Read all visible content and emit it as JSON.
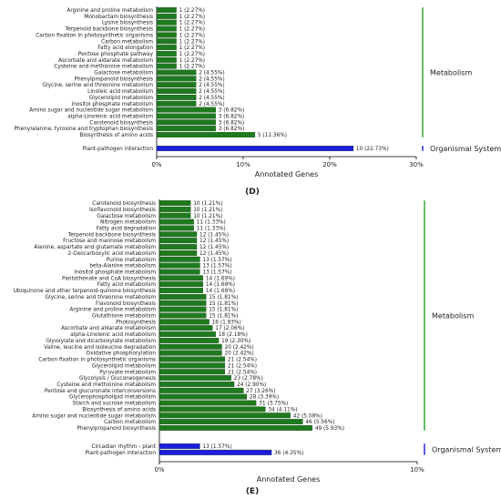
{
  "colors": {
    "metabolism": "#1f7a1f",
    "organismal": "#1d1ddc",
    "bracket": "#2e9e2e",
    "bracket2": "#1d1ddc",
    "axis": "#000000",
    "text": "#222222"
  },
  "chart_data": [
    {
      "type": "bar",
      "orientation": "horizontal",
      "panel_label": "(D)",
      "xlabel": "Annotated Genes",
      "xticks": [
        "0%",
        "10%",
        "20%",
        "30%"
      ],
      "xlim": [
        0,
        30
      ],
      "groups": [
        "Metabolism",
        "Organismal Systems"
      ],
      "bars": [
        {
          "category": "Arginine and proline metabolism",
          "count": 1,
          "pct": 2.27,
          "label": "1 (2.27%)",
          "group": 0
        },
        {
          "category": "Monobactam biosynthesis",
          "count": 1,
          "pct": 2.27,
          "label": "1 (2.27%)",
          "group": 0
        },
        {
          "category": "Lysine biosynthesis",
          "count": 1,
          "pct": 2.27,
          "label": "1 (2.27%)",
          "group": 0
        },
        {
          "category": "Terpenoid backbone biosynthesis",
          "count": 1,
          "pct": 2.27,
          "label": "1 (2.27%)",
          "group": 0
        },
        {
          "category": "Carbon fixation in photosynthetic organisms",
          "count": 1,
          "pct": 2.27,
          "label": "1 (2.27%)",
          "group": 0
        },
        {
          "category": "Carbon metabolism",
          "count": 1,
          "pct": 2.27,
          "label": "1 (2.27%)",
          "group": 0
        },
        {
          "category": "Fatty acid elongation",
          "count": 1,
          "pct": 2.27,
          "label": "1 (2.27%)",
          "group": 0
        },
        {
          "category": "Pentose phosphate pathway",
          "count": 1,
          "pct": 2.27,
          "label": "1 (2.27%)",
          "group": 0
        },
        {
          "category": "Ascorbate and aldarate metabolism",
          "count": 1,
          "pct": 2.27,
          "label": "1 (2.27%)",
          "group": 0
        },
        {
          "category": "Cysteine and methionine metabolism",
          "count": 1,
          "pct": 2.27,
          "label": "1 (2.27%)",
          "group": 0
        },
        {
          "category": "Galactose metabolism",
          "count": 2,
          "pct": 4.55,
          "label": "2 (4.55%)",
          "group": 0
        },
        {
          "category": "Phenylpropanoid biosynthesis",
          "count": 2,
          "pct": 4.55,
          "label": "2 (4.55%)",
          "group": 0
        },
        {
          "category": "Glycine, serine and threonine metabolism",
          "count": 2,
          "pct": 4.55,
          "label": "2 (4.55%)",
          "group": 0
        },
        {
          "category": "Linoleic acid metabolism",
          "count": 2,
          "pct": 4.55,
          "label": "2 (4.55%)",
          "group": 0
        },
        {
          "category": "Glycerolipid metabolism",
          "count": 2,
          "pct": 4.55,
          "label": "2 (4.55%)",
          "group": 0
        },
        {
          "category": "Inositol phosphate metabolism",
          "count": 2,
          "pct": 4.55,
          "label": "2 (4.55%)",
          "group": 0
        },
        {
          "category": "Amino sugar and nucleotide sugar metabolism",
          "count": 3,
          "pct": 6.82,
          "label": "3 (6.82%)",
          "group": 0
        },
        {
          "category": "alpha-Linolenic acid metabolism",
          "count": 3,
          "pct": 6.82,
          "label": "3 (6.82%)",
          "group": 0
        },
        {
          "category": "Carotenoid biosynthesis",
          "count": 3,
          "pct": 6.82,
          "label": "3 (6.82%)",
          "group": 0
        },
        {
          "category": "Phenylalanine, tyrosine and tryptophan biosynthesis",
          "count": 3,
          "pct": 6.82,
          "label": "3 (6.82%)",
          "group": 0
        },
        {
          "category": "Biosynthesis of amino acids",
          "count": 5,
          "pct": 11.36,
          "label": "5 (11.36%)",
          "group": 0
        },
        {
          "category": "Plant-pathogen interaction",
          "count": 10,
          "pct": 22.73,
          "label": "10 (22.73%)",
          "group": 1
        }
      ]
    },
    {
      "type": "bar",
      "orientation": "horizontal",
      "panel_label": "(E)",
      "xlabel": "Annotated Genes",
      "xticks": [
        "0%",
        "10%"
      ],
      "xlim": [
        0,
        10
      ],
      "groups": [
        "Metabolism",
        "Organismal Systems"
      ],
      "bars": [
        {
          "category": "Carotenoid biosynthesis",
          "count": 10,
          "pct": 1.21,
          "label": "10 (1.21%)",
          "group": 0
        },
        {
          "category": "Isoflavonoid biosynthesis",
          "count": 10,
          "pct": 1.21,
          "label": "10 (1.21%)",
          "group": 0
        },
        {
          "category": "Galactose metabolism",
          "count": 10,
          "pct": 1.21,
          "label": "10 (1.21%)",
          "group": 0
        },
        {
          "category": "Nitrogen metabolism",
          "count": 11,
          "pct": 1.33,
          "label": "11 (1.33%)",
          "group": 0
        },
        {
          "category": "Fatty acid degradation",
          "count": 11,
          "pct": 1.33,
          "label": "11 (1.33%)",
          "group": 0
        },
        {
          "category": "Terpenoid backbone biosynthesis",
          "count": 12,
          "pct": 1.45,
          "label": "12 (1.45%)",
          "group": 0
        },
        {
          "category": "Fructose and mannose metabolism",
          "count": 12,
          "pct": 1.45,
          "label": "12 (1.45%)",
          "group": 0
        },
        {
          "category": "Alanine, aspartate and glutamate metabolism",
          "count": 12,
          "pct": 1.45,
          "label": "12 (1.45%)",
          "group": 0
        },
        {
          "category": "2-Oxocarboxylic acid metabolism",
          "count": 12,
          "pct": 1.45,
          "label": "12 (1.45%)",
          "group": 0
        },
        {
          "category": "Purine metabolism",
          "count": 13,
          "pct": 1.57,
          "label": "13 (1.57%)",
          "group": 0
        },
        {
          "category": "beta-Alanine metabolism",
          "count": 13,
          "pct": 1.57,
          "label": "13 (1.57%)",
          "group": 0
        },
        {
          "category": "Inositol phosphate metabolism",
          "count": 13,
          "pct": 1.57,
          "label": "13 (1.57%)",
          "group": 0
        },
        {
          "category": "Pantothenate and CoA biosynthesis",
          "count": 14,
          "pct": 1.69,
          "label": "14 (1.69%)",
          "group": 0
        },
        {
          "category": "Fatty acid metabolism",
          "count": 14,
          "pct": 1.69,
          "label": "14 (1.69%)",
          "group": 0
        },
        {
          "category": "Ubiquinone and other terpenoid-quinone biosynthesis",
          "count": 14,
          "pct": 1.69,
          "label": "14 (1.69%)",
          "group": 0
        },
        {
          "category": "Glycine, serine and threonine metabolism",
          "count": 15,
          "pct": 1.81,
          "label": "15 (1.81%)",
          "group": 0
        },
        {
          "category": "Flavonoid biosynthesis",
          "count": 15,
          "pct": 1.81,
          "label": "15 (1.81%)",
          "group": 0
        },
        {
          "category": "Arginine and proline metabolism",
          "count": 15,
          "pct": 1.81,
          "label": "15 (1.81%)",
          "group": 0
        },
        {
          "category": "Glutathione metabolism",
          "count": 15,
          "pct": 1.81,
          "label": "15 (1.81%)",
          "group": 0
        },
        {
          "category": "Photosynthesis",
          "count": 16,
          "pct": 1.93,
          "label": "16 (1.93%)",
          "group": 0
        },
        {
          "category": "Ascorbate and aldarate metabolism",
          "count": 17,
          "pct": 2.06,
          "label": "17 (2.06%)",
          "group": 0
        },
        {
          "category": "alpha-Linolenic acid metabolism",
          "count": 18,
          "pct": 2.18,
          "label": "18 (2.18%)",
          "group": 0
        },
        {
          "category": "Glyoxylate and dicarboxylate metabolism",
          "count": 19,
          "pct": 2.3,
          "label": "19 (2.30%)",
          "group": 0
        },
        {
          "category": "Valine, leucine and isoleucine degradation",
          "count": 20,
          "pct": 2.42,
          "label": "20 (2.42%)",
          "group": 0
        },
        {
          "category": "Oxidative phosphorylation",
          "count": 20,
          "pct": 2.42,
          "label": "20 (2.42%)",
          "group": 0
        },
        {
          "category": "Carbon fixation in photosynthetic organisms",
          "count": 21,
          "pct": 2.54,
          "label": "21 (2.54%)",
          "group": 0
        },
        {
          "category": "Glycerolipid metabolism",
          "count": 21,
          "pct": 2.54,
          "label": "21 (2.54%)",
          "group": 0
        },
        {
          "category": "Pyruvate metabolism",
          "count": 21,
          "pct": 2.54,
          "label": "21 (2.54%)",
          "group": 0
        },
        {
          "category": "Glycolysis / Gluconeogenesis",
          "count": 23,
          "pct": 2.78,
          "label": "23 (2.78%)",
          "group": 0
        },
        {
          "category": "Cysteine and methionine metabolism",
          "count": 24,
          "pct": 2.9,
          "label": "24 (2.90%)",
          "group": 0
        },
        {
          "category": "Pentose and glucuronate interconversions",
          "count": 27,
          "pct": 3.26,
          "label": "27 (3.26%)",
          "group": 0
        },
        {
          "category": "Glycerophospholipid metabolism",
          "count": 28,
          "pct": 3.39,
          "label": "28 (3.39%)",
          "group": 0
        },
        {
          "category": "Starch and sucrose metabolism",
          "count": 31,
          "pct": 3.75,
          "label": "31 (3.75%)",
          "group": 0
        },
        {
          "category": "Biosynthesis of amino acids",
          "count": 34,
          "pct": 4.11,
          "label": "34 (4.11%)",
          "group": 0
        },
        {
          "category": "Amino sugar and nucleotide sugar metabolism",
          "count": 42,
          "pct": 5.08,
          "label": "42 (5.08%)",
          "group": 0
        },
        {
          "category": "Carbon metabolism",
          "count": 46,
          "pct": 5.56,
          "label": "46 (5.56%)",
          "group": 0
        },
        {
          "category": "Phenylpropanoid biosynthesis",
          "count": 49,
          "pct": 5.93,
          "label": "49 (5.93%)",
          "group": 0
        },
        {
          "category": "Circadian rhythm - plant",
          "count": 13,
          "pct": 1.57,
          "label": "13 (1.57%)",
          "group": 1
        },
        {
          "category": "Plant-pathogen interaction",
          "count": 36,
          "pct": 4.35,
          "label": "36 (4.35%)",
          "group": 1
        }
      ]
    }
  ]
}
